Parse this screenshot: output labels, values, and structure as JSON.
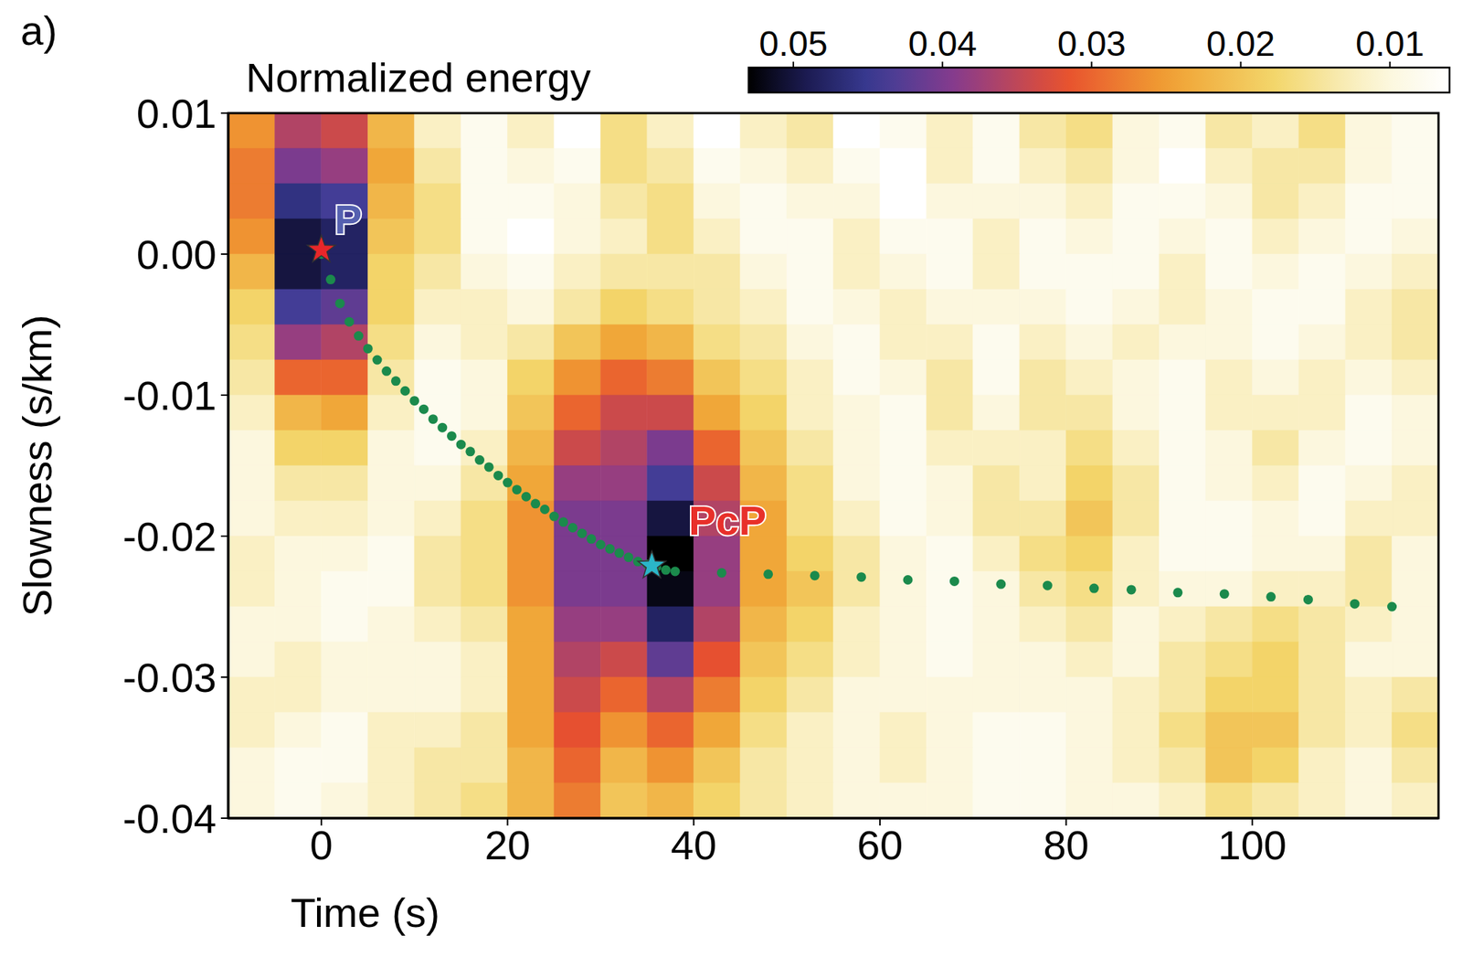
{
  "panel": "a)",
  "chart_data": {
    "type": "heatmap",
    "xlabel": "Time (s)",
    "ylabel": "Slowness (s/km)",
    "xlim": [
      -10,
      120
    ],
    "ylim": [
      -0.04,
      0.01
    ],
    "xticks": [
      0,
      20,
      40,
      60,
      80,
      100
    ],
    "yticks": [
      0.01,
      {
        "value": 0,
        "label": "0.00"
      },
      -0.01,
      -0.02,
      -0.03,
      -0.04
    ],
    "heatmap": {
      "x_bins": [
        -10,
        -5,
        0,
        5,
        10,
        15,
        20,
        25,
        30,
        35,
        40,
        45,
        50,
        55,
        60,
        65,
        70,
        75,
        80,
        85,
        90,
        95,
        100,
        105,
        110,
        115,
        120
      ],
      "y_bins": [
        0.01,
        0.0075,
        0.005,
        0.0025,
        0,
        -0.0025,
        -0.005,
        -0.0075,
        -0.01,
        -0.0125,
        -0.015,
        -0.0175,
        -0.02,
        -0.0225,
        -0.025,
        -0.0275,
        -0.03,
        -0.0325,
        -0.035,
        -0.0375,
        -0.04
      ],
      "values": [
        [
          0.026,
          0.036,
          0.034,
          0.022,
          0.012,
          0.008,
          0.012,
          0.006,
          0.016,
          0.012,
          0.006,
          0.012,
          0.014,
          0.006,
          0.008,
          0.012,
          0.008,
          0.014,
          0.016,
          0.01,
          0.008,
          0.014,
          0.012,
          0.016,
          0.01,
          0.008
        ],
        [
          0.028,
          0.04,
          0.038,
          0.024,
          0.014,
          0.008,
          0.01,
          0.008,
          0.016,
          0.014,
          0.008,
          0.01,
          0.012,
          0.008,
          0.006,
          0.012,
          0.008,
          0.012,
          0.014,
          0.01,
          0.006,
          0.012,
          0.014,
          0.014,
          0.01,
          0.008
        ],
        [
          0.028,
          0.046,
          0.044,
          0.022,
          0.016,
          0.008,
          0.008,
          0.01,
          0.014,
          0.016,
          0.01,
          0.008,
          0.01,
          0.01,
          0.006,
          0.01,
          0.01,
          0.01,
          0.012,
          0.008,
          0.008,
          0.01,
          0.014,
          0.012,
          0.008,
          0.008
        ],
        [
          0.026,
          0.05,
          0.048,
          0.02,
          0.016,
          0.008,
          0.006,
          0.01,
          0.012,
          0.016,
          0.012,
          0.008,
          0.008,
          0.012,
          0.008,
          0.008,
          0.012,
          0.008,
          0.01,
          0.008,
          0.01,
          0.008,
          0.012,
          0.01,
          0.008,
          0.01
        ],
        [
          0.022,
          0.05,
          0.048,
          0.018,
          0.014,
          0.01,
          0.008,
          0.012,
          0.014,
          0.014,
          0.014,
          0.01,
          0.008,
          0.012,
          0.01,
          0.008,
          0.012,
          0.008,
          0.008,
          0.008,
          0.012,
          0.008,
          0.01,
          0.008,
          0.01,
          0.012
        ],
        [
          0.018,
          0.044,
          0.042,
          0.018,
          0.012,
          0.012,
          0.01,
          0.014,
          0.018,
          0.016,
          0.014,
          0.012,
          0.008,
          0.01,
          0.012,
          0.01,
          0.01,
          0.01,
          0.008,
          0.01,
          0.012,
          0.01,
          0.008,
          0.008,
          0.012,
          0.014
        ],
        [
          0.016,
          0.038,
          0.036,
          0.016,
          0.01,
          0.012,
          0.014,
          0.02,
          0.024,
          0.022,
          0.016,
          0.014,
          0.01,
          0.008,
          0.012,
          0.012,
          0.008,
          0.012,
          0.01,
          0.012,
          0.01,
          0.01,
          0.008,
          0.01,
          0.012,
          0.014
        ],
        [
          0.014,
          0.03,
          0.03,
          0.014,
          0.008,
          0.01,
          0.018,
          0.026,
          0.03,
          0.028,
          0.02,
          0.016,
          0.012,
          0.008,
          0.01,
          0.014,
          0.008,
          0.014,
          0.012,
          0.01,
          0.008,
          0.012,
          0.01,
          0.012,
          0.01,
          0.012
        ],
        [
          0.012,
          0.022,
          0.024,
          0.012,
          0.008,
          0.01,
          0.02,
          0.03,
          0.034,
          0.034,
          0.024,
          0.018,
          0.012,
          0.01,
          0.008,
          0.014,
          0.01,
          0.014,
          0.014,
          0.01,
          0.008,
          0.012,
          0.012,
          0.012,
          0.008,
          0.01
        ],
        [
          0.01,
          0.018,
          0.018,
          0.01,
          0.008,
          0.012,
          0.022,
          0.034,
          0.036,
          0.04,
          0.03,
          0.02,
          0.014,
          0.01,
          0.008,
          0.012,
          0.012,
          0.012,
          0.016,
          0.012,
          0.008,
          0.01,
          0.014,
          0.01,
          0.008,
          0.01
        ],
        [
          0.01,
          0.014,
          0.014,
          0.01,
          0.01,
          0.014,
          0.024,
          0.038,
          0.038,
          0.044,
          0.034,
          0.022,
          0.016,
          0.01,
          0.008,
          0.01,
          0.014,
          0.012,
          0.018,
          0.014,
          0.008,
          0.01,
          0.012,
          0.008,
          0.01,
          0.012
        ],
        [
          0.01,
          0.012,
          0.012,
          0.01,
          0.012,
          0.016,
          0.026,
          0.04,
          0.04,
          0.05,
          0.036,
          0.024,
          0.016,
          0.012,
          0.008,
          0.01,
          0.014,
          0.014,
          0.02,
          0.014,
          0.008,
          0.008,
          0.01,
          0.008,
          0.012,
          0.012
        ],
        [
          0.012,
          0.01,
          0.01,
          0.008,
          0.014,
          0.016,
          0.026,
          0.04,
          0.04,
          0.053,
          0.038,
          0.024,
          0.018,
          0.014,
          0.01,
          0.008,
          0.012,
          0.016,
          0.018,
          0.012,
          0.008,
          0.008,
          0.01,
          0.01,
          0.014,
          0.01
        ],
        [
          0.012,
          0.01,
          0.008,
          0.008,
          0.014,
          0.016,
          0.026,
          0.04,
          0.04,
          0.052,
          0.038,
          0.024,
          0.02,
          0.014,
          0.01,
          0.008,
          0.01,
          0.014,
          0.016,
          0.012,
          0.01,
          0.01,
          0.012,
          0.012,
          0.014,
          0.01
        ],
        [
          0.01,
          0.01,
          0.008,
          0.01,
          0.012,
          0.014,
          0.024,
          0.038,
          0.038,
          0.048,
          0.036,
          0.022,
          0.018,
          0.012,
          0.01,
          0.008,
          0.01,
          0.012,
          0.014,
          0.01,
          0.012,
          0.014,
          0.016,
          0.014,
          0.012,
          0.01
        ],
        [
          0.01,
          0.012,
          0.01,
          0.01,
          0.01,
          0.012,
          0.024,
          0.036,
          0.034,
          0.042,
          0.032,
          0.02,
          0.016,
          0.012,
          0.01,
          0.008,
          0.01,
          0.01,
          0.012,
          0.01,
          0.014,
          0.016,
          0.018,
          0.014,
          0.01,
          0.01
        ],
        [
          0.012,
          0.012,
          0.01,
          0.01,
          0.01,
          0.012,
          0.024,
          0.034,
          0.03,
          0.036,
          0.028,
          0.018,
          0.014,
          0.01,
          0.01,
          0.01,
          0.01,
          0.01,
          0.01,
          0.012,
          0.014,
          0.018,
          0.018,
          0.014,
          0.012,
          0.014
        ],
        [
          0.012,
          0.01,
          0.008,
          0.012,
          0.012,
          0.014,
          0.024,
          0.032,
          0.026,
          0.03,
          0.024,
          0.016,
          0.012,
          0.01,
          0.012,
          0.01,
          0.008,
          0.008,
          0.01,
          0.012,
          0.016,
          0.02,
          0.02,
          0.014,
          0.012,
          0.016
        ],
        [
          0.01,
          0.008,
          0.008,
          0.012,
          0.014,
          0.014,
          0.022,
          0.03,
          0.022,
          0.026,
          0.02,
          0.014,
          0.012,
          0.01,
          0.012,
          0.01,
          0.008,
          0.008,
          0.01,
          0.012,
          0.014,
          0.02,
          0.018,
          0.012,
          0.01,
          0.014
        ],
        [
          0.01,
          0.008,
          0.01,
          0.012,
          0.014,
          0.016,
          0.022,
          0.028,
          0.02,
          0.022,
          0.018,
          0.014,
          0.012,
          0.01,
          0.01,
          0.01,
          0.008,
          0.008,
          0.01,
          0.01,
          0.012,
          0.016,
          0.014,
          0.012,
          0.01,
          0.012
        ]
      ]
    },
    "colorbar": {
      "label": "Normalized energy",
      "range": [
        0.053,
        0.006
      ],
      "ticks": [
        0.05,
        0.04,
        0.03,
        0.02,
        0.01
      ]
    },
    "curve": {
      "color": "#1b8a4c",
      "marker": "circle",
      "x": [
        0,
        1,
        2,
        3,
        4,
        5,
        6,
        7,
        8,
        9,
        10,
        11,
        12,
        13,
        14,
        15,
        16,
        17,
        18,
        19,
        20,
        21,
        22,
        23,
        24,
        25,
        26,
        27,
        28,
        29,
        30,
        31,
        32,
        33,
        34,
        35,
        36,
        37,
        38,
        43,
        48,
        53,
        58,
        63,
        68,
        73,
        78,
        83,
        87,
        92,
        97,
        102,
        106,
        111,
        115
      ],
      "y": [
        0,
        -0.0018,
        -0.0035,
        -0.0048,
        -0.0058,
        -0.0067,
        -0.0075,
        -0.0083,
        -0.009,
        -0.0097,
        -0.0104,
        -0.011,
        -0.0117,
        -0.0123,
        -0.0129,
        -0.0135,
        -0.014,
        -0.0146,
        -0.0151,
        -0.0157,
        -0.0162,
        -0.0167,
        -0.0172,
        -0.0177,
        -0.0181,
        -0.0186,
        -0.019,
        -0.0194,
        -0.0198,
        -0.0202,
        -0.0206,
        -0.0209,
        -0.0212,
        -0.0215,
        -0.0218,
        -0.022,
        -0.0222,
        -0.0224,
        -0.0225,
        -0.0226,
        -0.0227,
        -0.0228,
        -0.0229,
        -0.0231,
        -0.0232,
        -0.0234,
        -0.0235,
        -0.0237,
        -0.0238,
        -0.024,
        -0.0241,
        -0.0243,
        -0.0245,
        -0.0248,
        -0.025
      ]
    },
    "markers": [
      {
        "label": "P",
        "x": 0,
        "y": 0.0003,
        "color": "#e8262a",
        "marker": "star"
      },
      {
        "label": "PcP",
        "x": 35.5,
        "y": -0.0221,
        "color": "#2bb6c9",
        "marker": "star"
      }
    ]
  }
}
